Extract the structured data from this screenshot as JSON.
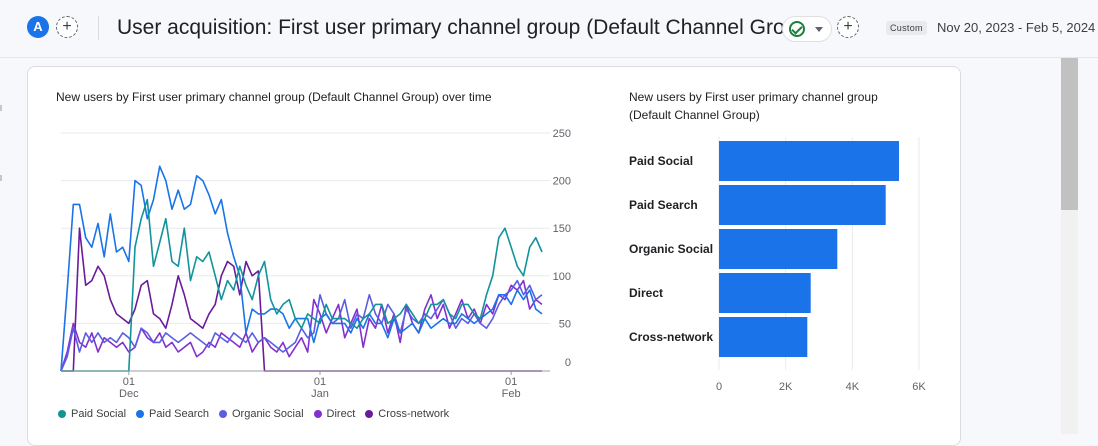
{
  "header": {
    "avatar_letter": "A",
    "add_comparison": "+",
    "title": "User acquisition: First user primary channel group (Default Channel Group)",
    "add_report": "+",
    "date_tag": "Custom",
    "date_range": "Nov 20, 2023 - Feb 5, 2024"
  },
  "colors": {
    "paid_social": "#12939a",
    "paid_search": "#1a73e8",
    "organic_social": "#5b5ee0",
    "direct": "#8430ce",
    "cross_network": "#6a1b9a",
    "bar": "#1a73e8"
  },
  "chart_data": [
    {
      "type": "line",
      "title": "New users by First user primary channel group (Default Channel Group) over time",
      "ylim": [
        0,
        250
      ],
      "yticks": [
        0,
        50,
        100,
        150,
        200,
        250
      ],
      "xticks": [
        {
          "index": 11,
          "label_top": "01",
          "label_bottom": "Dec"
        },
        {
          "index": 42,
          "label_top": "01",
          "label_bottom": "Jan"
        },
        {
          "index": 73,
          "label_top": "01",
          "label_bottom": "Feb"
        }
      ],
      "series": [
        {
          "name": "Paid Social",
          "color_key": "paid_social",
          "values": [
            0,
            0,
            0,
            0,
            0,
            0,
            0,
            0,
            0,
            0,
            0,
            0,
            130,
            160,
            180,
            110,
            135,
            160,
            115,
            110,
            150,
            95,
            120,
            115,
            125,
            100,
            75,
            95,
            85,
            110,
            90,
            75,
            100,
            115,
            75,
            60,
            70,
            75,
            55,
            45,
            60,
            55,
            50,
            70,
            55,
            55,
            55,
            50,
            45,
            55,
            60,
            70,
            70,
            50,
            55,
            60,
            70,
            60,
            50,
            55,
            70,
            70,
            75,
            60,
            55,
            70,
            70,
            60,
            55,
            80,
            100,
            140,
            150,
            130,
            110,
            100,
            130,
            140,
            125
          ]
        },
        {
          "name": "Paid Search",
          "color_key": "paid_search",
          "values": [
            0,
            85,
            175,
            175,
            140,
            130,
            155,
            120,
            165,
            125,
            130,
            115,
            200,
            195,
            160,
            180,
            215,
            200,
            170,
            190,
            170,
            175,
            205,
            200,
            185,
            165,
            180,
            145,
            120,
            100,
            40,
            65,
            60,
            60,
            65,
            65,
            60,
            45,
            55,
            55,
            55,
            30,
            55,
            60,
            50,
            50,
            50,
            40,
            55,
            45,
            60,
            50,
            50,
            35,
            55,
            40,
            45,
            50,
            40,
            55,
            45,
            50,
            55,
            50,
            50,
            60,
            55,
            50,
            55,
            60,
            65,
            80,
            80,
            70,
            85,
            75,
            85,
            65,
            60
          ]
        },
        {
          "name": "Organic Social",
          "color_key": "organic_social",
          "values": [
            0,
            15,
            45,
            20,
            40,
            30,
            40,
            30,
            35,
            30,
            40,
            35,
            25,
            45,
            40,
            30,
            30,
            40,
            35,
            30,
            35,
            40,
            35,
            30,
            25,
            40,
            35,
            30,
            40,
            35,
            30,
            40,
            30,
            35,
            30,
            25,
            20,
            25,
            30,
            45,
            35,
            40,
            80,
            60,
            50,
            55,
            75,
            45,
            60,
            55,
            80,
            60,
            50,
            70,
            60,
            40,
            65,
            55,
            50,
            60,
            55,
            65,
            75,
            60,
            45,
            55,
            50,
            60,
            50,
            45,
            55,
            70,
            80,
            85,
            95,
            80,
            90,
            75,
            80
          ]
        },
        {
          "name": "Direct",
          "color_key": "direct",
          "values": [
            0,
            20,
            50,
            30,
            25,
            40,
            20,
            35,
            30,
            25,
            30,
            20,
            25,
            45,
            35,
            30,
            40,
            25,
            30,
            20,
            25,
            30,
            15,
            20,
            30,
            25,
            40,
            35,
            30,
            25,
            40,
            20,
            30,
            35,
            25,
            20,
            30,
            15,
            25,
            35,
            20,
            75,
            60,
            40,
            55,
            70,
            35,
            50,
            65,
            25,
            55,
            45,
            70,
            40,
            60,
            30,
            70,
            50,
            40,
            65,
            80,
            55,
            70,
            45,
            60,
            75,
            55,
            65,
            50,
            70,
            60,
            80,
            75,
            90,
            85,
            95,
            65,
            75,
            70
          ]
        },
        {
          "name": "Cross-network",
          "color_key": "cross_network",
          "values": [
            0,
            0,
            0,
            150,
            90,
            95,
            110,
            100,
            75,
            60,
            55,
            50,
            65,
            90,
            95,
            60,
            55,
            45,
            70,
            100,
            80,
            55,
            50,
            45,
            60,
            70,
            100,
            115,
            110,
            80,
            115,
            100,
            105,
            0,
            0,
            0,
            0,
            0,
            0,
            0,
            0,
            0,
            0,
            0,
            0,
            0,
            0,
            0,
            0,
            0,
            0,
            0,
            0,
            0,
            0,
            0,
            0,
            0,
            0,
            0,
            0,
            0,
            0,
            0,
            0,
            0,
            0,
            0,
            0,
            0,
            0,
            0,
            0,
            0,
            0,
            0,
            0,
            0,
            0
          ]
        }
      ]
    },
    {
      "type": "bar",
      "title_line1": "New users by First user primary channel group",
      "title_line2": "(Default Channel Group)",
      "categories": [
        "Paid Social",
        "Paid Search",
        "Organic Social",
        "Direct",
        "Cross-network"
      ],
      "values": [
        5400,
        5000,
        3550,
        2750,
        2650
      ],
      "xlim": [
        0,
        6000
      ],
      "xticks": [
        {
          "value": 0,
          "label": "0"
        },
        {
          "value": 2000,
          "label": "2K"
        },
        {
          "value": 4000,
          "label": "4K"
        },
        {
          "value": 6000,
          "label": "6K"
        }
      ]
    }
  ]
}
